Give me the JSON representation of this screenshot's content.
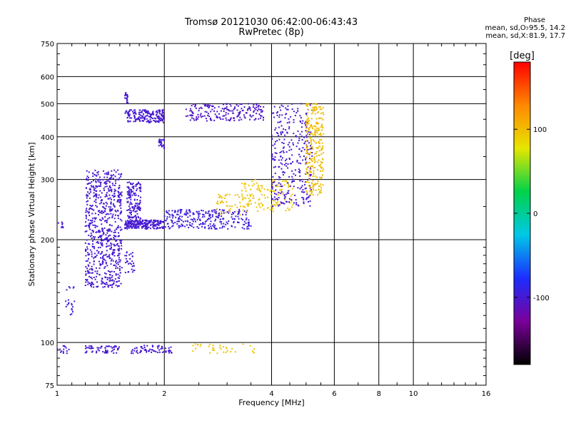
{
  "chart_data": {
    "type": "scatter",
    "title": "Tromsø 20121030 06:42:00-06:43:43",
    "subtitle": "RwPretec (8p)",
    "xlabel": "Frequency [MHz]",
    "ylabel": "Stationary phase Virtual Height [km]",
    "x_scale": "log",
    "y_scale": "log",
    "xlim": [
      1,
      16
    ],
    "ylim": [
      75,
      750
    ],
    "x_ticks": [
      1,
      2,
      4,
      6,
      8,
      10,
      16
    ],
    "y_ticks": [
      75,
      100,
      200,
      300,
      400,
      500,
      600,
      750
    ],
    "grid": true,
    "phase_info": {
      "header": "Phase",
      "o_label": "mean, sd,O:",
      "o_values": "-95.5, 14.2",
      "x_label": "mean, sd,X:",
      "x_values": "81.9, 17.7"
    },
    "colorbar": {
      "title": "[deg]",
      "range": [
        -180,
        180
      ],
      "ticks": [
        100,
        0,
        -100
      ],
      "colors": [
        "#000000",
        "#7a009a",
        "#1c2dff",
        "#00c8e6",
        "#00d24a",
        "#e6e600",
        "#ff8800",
        "#ff0000"
      ]
    },
    "series": [
      {
        "freq_range": [
          1.0,
          1.05
        ],
        "height_range": [
          215,
          225
        ],
        "phase": -100,
        "count": 8
      },
      {
        "freq_range": [
          1.05,
          1.12
        ],
        "height_range": [
          118,
          150
        ],
        "phase": -95,
        "count": 20
      },
      {
        "freq_range": [
          1.0,
          1.1
        ],
        "height_range": [
          93,
          98
        ],
        "phase": -100,
        "count": 14
      },
      {
        "freq_range": [
          1.2,
          1.52
        ],
        "height_range": [
          145,
          320
        ],
        "phase": -100,
        "count": 700
      },
      {
        "freq_range": [
          1.57,
          1.72
        ],
        "height_range": [
          225,
          295
        ],
        "phase": -100,
        "count": 160
      },
      {
        "freq_range": [
          1.55,
          2.0
        ],
        "height_range": [
          215,
          228
        ],
        "phase": -100,
        "count": 200
      },
      {
        "freq_range": [
          1.55,
          1.65
        ],
        "height_range": [
          160,
          185
        ],
        "phase": -100,
        "count": 30
      },
      {
        "freq_range": [
          1.55,
          2.0
        ],
        "height_range": [
          440,
          480
        ],
        "phase": -100,
        "count": 180
      },
      {
        "freq_range": [
          1.55,
          1.58
        ],
        "height_range": [
          500,
          540
        ],
        "phase": -100,
        "count": 20
      },
      {
        "freq_range": [
          1.93,
          2.0
        ],
        "height_range": [
          370,
          395
        ],
        "phase": -100,
        "count": 25
      },
      {
        "freq_range": [
          2.0,
          3.5
        ],
        "height_range": [
          215,
          245
        ],
        "phase": -95,
        "count": 260
      },
      {
        "freq_range": [
          2.3,
          3.8
        ],
        "height_range": [
          445,
          500
        ],
        "phase": -105,
        "count": 200
      },
      {
        "freq_range": [
          2.8,
          3.3
        ],
        "height_range": [
          235,
          272
        ],
        "phase": 100,
        "count": 40
      },
      {
        "freq_range": [
          3.3,
          4.6
        ],
        "height_range": [
          242,
          300
        ],
        "phase": 95,
        "count": 150
      },
      {
        "freq_range": [
          4.0,
          5.2
        ],
        "height_range": [
          250,
          500
        ],
        "phase": -100,
        "count": 320
      },
      {
        "freq_range": [
          5.0,
          5.6
        ],
        "height_range": [
          270,
          500
        ],
        "phase": 100,
        "count": 260
      },
      {
        "freq_range": [
          1.2,
          1.5
        ],
        "height_range": [
          93,
          98
        ],
        "phase": -100,
        "count": 60
      },
      {
        "freq_range": [
          1.6,
          2.1
        ],
        "height_range": [
          93,
          98
        ],
        "phase": -100,
        "count": 70
      },
      {
        "freq_range": [
          2.4,
          3.6
        ],
        "height_range": [
          93,
          99
        ],
        "phase": 95,
        "count": 35
      }
    ]
  }
}
